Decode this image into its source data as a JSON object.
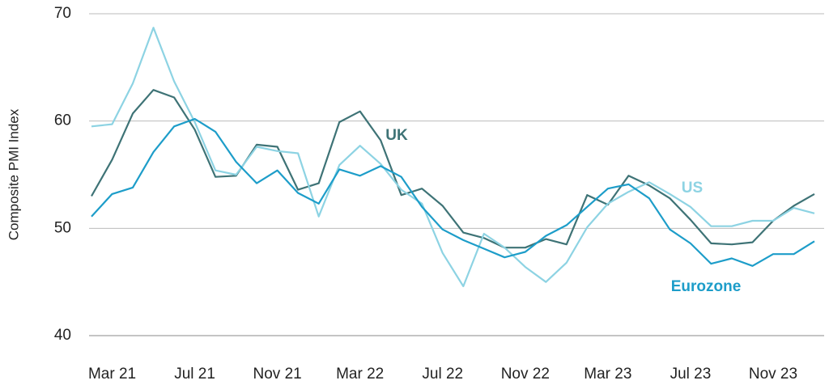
{
  "chart_data": {
    "type": "line",
    "y_label": "Composite PMI Index",
    "categories": [
      null,
      "Mar 21",
      null,
      null,
      null,
      "Jul 21",
      null,
      null,
      null,
      "Nov 21",
      null,
      null,
      null,
      "Mar 22",
      null,
      null,
      null,
      "Jul 22",
      null,
      null,
      null,
      "Nov 22",
      null,
      null,
      null,
      "Mar 23",
      null,
      null,
      null,
      "Jul 23",
      null,
      null,
      null,
      "Nov 23",
      null,
      null
    ],
    "series": [
      {
        "name": "UK",
        "color": "#3e7376",
        "values": [
          53.0,
          56.4,
          60.7,
          62.9,
          62.2,
          59.2,
          54.8,
          54.9,
          57.8,
          57.6,
          53.6,
          54.2,
          59.9,
          60.9,
          58.2,
          53.1,
          53.7,
          52.1,
          49.6,
          49.1,
          48.2,
          48.2,
          49.0,
          48.5,
          53.1,
          52.2,
          54.9,
          54.0,
          52.8,
          50.8,
          48.6,
          48.5,
          48.7,
          50.7,
          52.1,
          53.2
        ]
      },
      {
        "name": "US",
        "color": "#8dd3e3",
        "values": [
          59.5,
          59.7,
          63.5,
          68.7,
          63.7,
          59.9,
          55.4,
          55.0,
          57.6,
          57.2,
          57.0,
          51.1,
          55.9,
          57.7,
          56.0,
          53.6,
          52.3,
          47.7,
          44.6,
          49.5,
          48.2,
          46.4,
          45.0,
          46.8,
          50.1,
          52.3,
          53.4,
          54.3,
          53.2,
          52.0,
          50.2,
          50.2,
          50.7,
          50.7,
          51.9,
          51.4
        ]
      },
      {
        "name": "Eurozone",
        "color": "#1d9dc9",
        "values": [
          51.1,
          53.2,
          53.8,
          57.1,
          59.5,
          60.2,
          59.0,
          56.2,
          54.2,
          55.4,
          53.3,
          52.3,
          55.5,
          54.9,
          55.8,
          54.8,
          52.0,
          49.9,
          48.9,
          48.1,
          47.3,
          47.8,
          49.3,
          50.3,
          52.0,
          53.7,
          54.1,
          52.8,
          49.9,
          48.6,
          46.7,
          47.2,
          46.5,
          47.6,
          47.6,
          48.8
        ]
      }
    ],
    "ylim": [
      40,
      70
    ],
    "yticks": [
      40,
      50,
      60,
      70
    ],
    "grid": true
  }
}
